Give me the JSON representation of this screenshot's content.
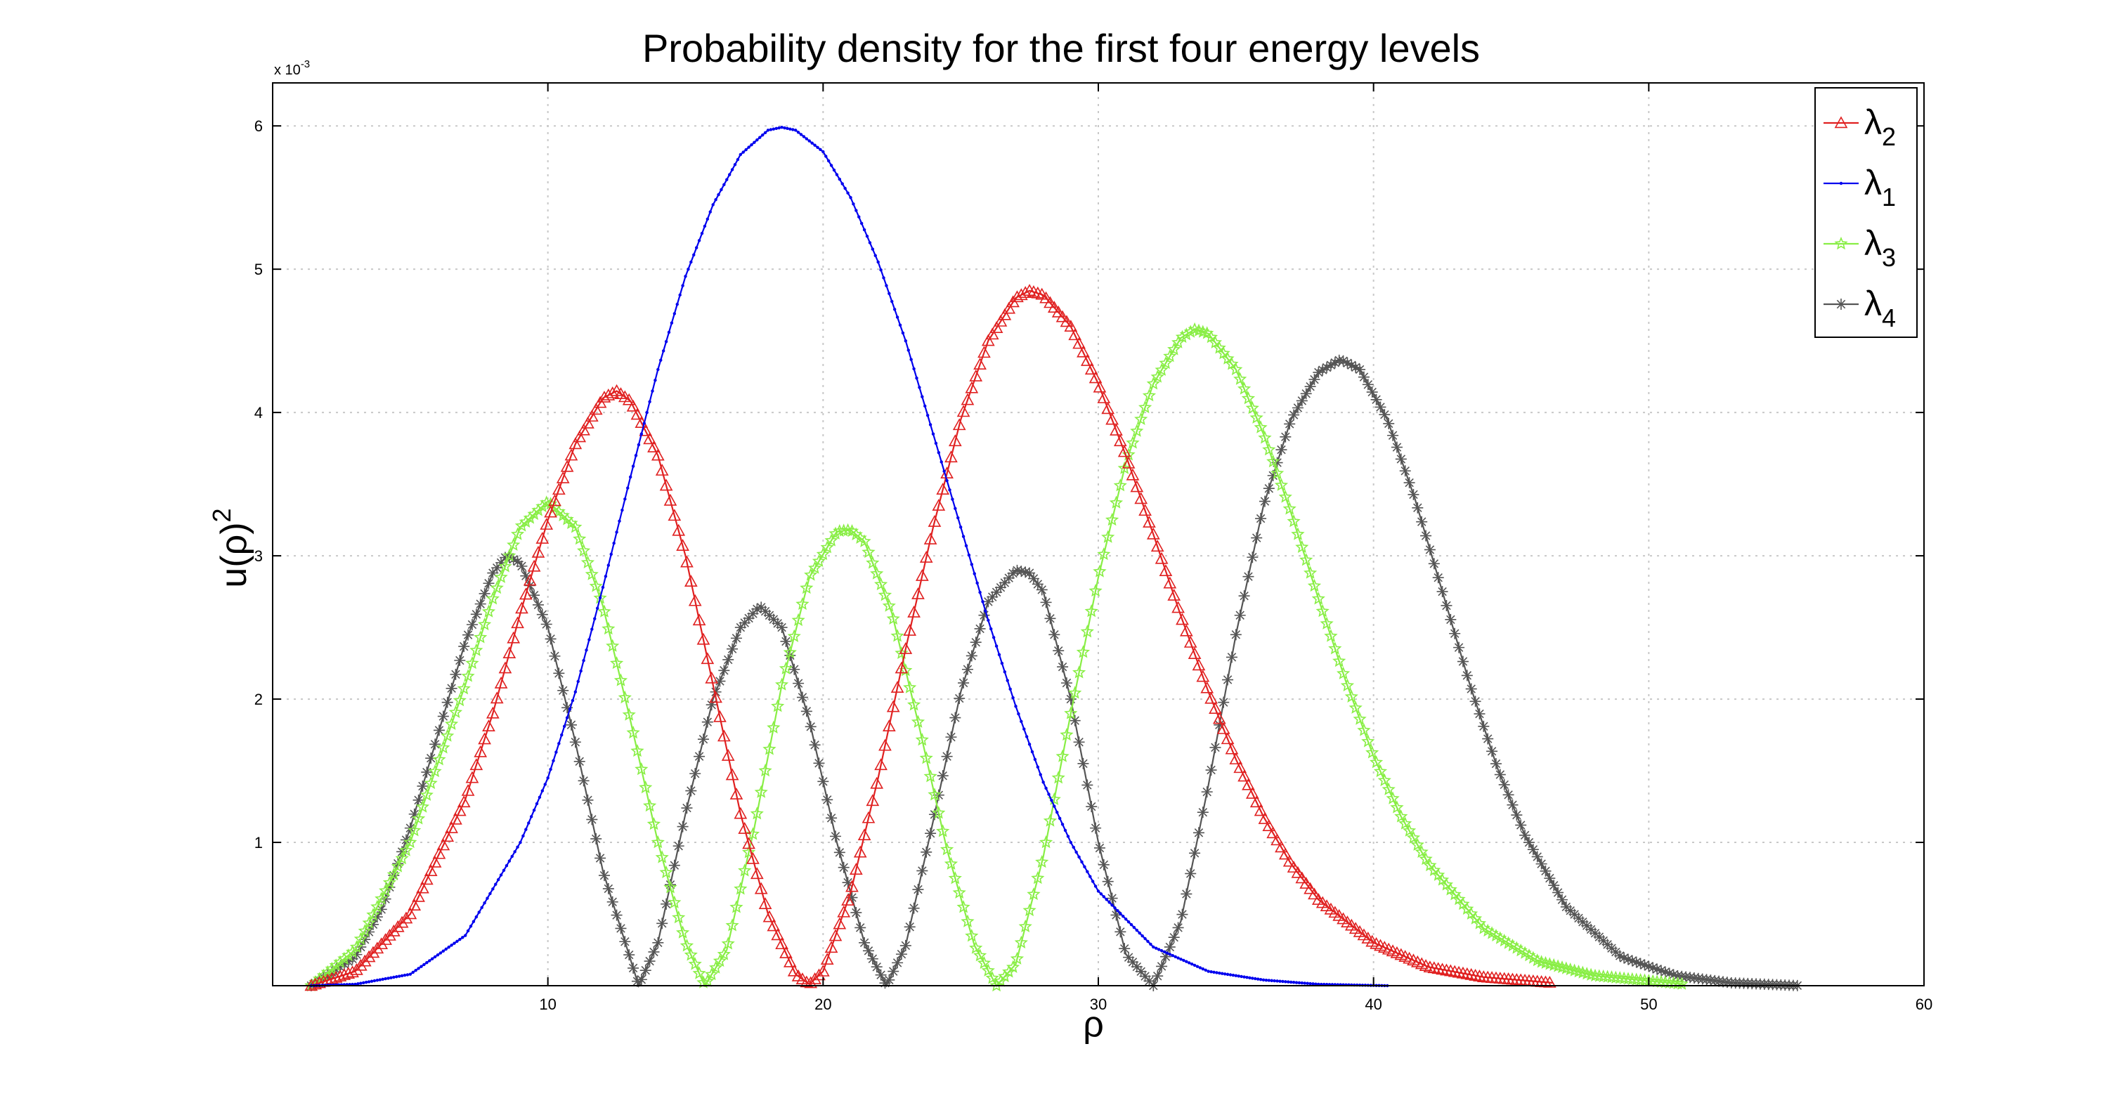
{
  "chart_data": {
    "type": "line",
    "title": "Probability density for the first four energy levels",
    "xlabel": "ρ",
    "ylabel": "u(ρ)",
    "ylabel_superscript": "2",
    "y_multiplier_base": "x 10",
    "y_multiplier_exp": "-3",
    "xlim": [
      0,
      60
    ],
    "ylim": [
      0,
      6.3
    ],
    "x_ticks": [
      10,
      20,
      30,
      40,
      50,
      60
    ],
    "y_ticks": [
      1,
      2,
      3,
      4,
      5,
      6
    ],
    "grid": true,
    "legend_position": "top-right",
    "legend": [
      {
        "symbol": "λ",
        "subscript": "2",
        "color": "#e02020",
        "marker": "triangle"
      },
      {
        "symbol": "λ",
        "subscript": "1",
        "color": "#0000ee",
        "marker": "dot"
      },
      {
        "symbol": "λ",
        "subscript": "3",
        "color": "#88ee44",
        "marker": "star"
      },
      {
        "symbol": "λ",
        "subscript": "4",
        "color": "#555555",
        "marker": "asterisk"
      }
    ],
    "series": [
      {
        "color": "#0000ee",
        "marker": "dot",
        "x": [
          1.4,
          3,
          5,
          7,
          9,
          10,
          11,
          12,
          13,
          14,
          15,
          16,
          17,
          18,
          18.5,
          19,
          20,
          21,
          22,
          23,
          24,
          25,
          26,
          27,
          28,
          29,
          30,
          32,
          34,
          36,
          38,
          40.5
        ],
        "y": [
          0.0,
          0.01,
          0.08,
          0.35,
          1.0,
          1.45,
          2.05,
          2.78,
          3.55,
          4.3,
          4.95,
          5.45,
          5.8,
          5.97,
          5.99,
          5.97,
          5.82,
          5.5,
          5.05,
          4.5,
          3.85,
          3.2,
          2.55,
          1.95,
          1.42,
          1.0,
          0.66,
          0.27,
          0.1,
          0.04,
          0.01,
          0.0
        ]
      },
      {
        "color": "#e02020",
        "marker": "triangle",
        "x": [
          1.4,
          3,
          5,
          7,
          8,
          9,
          10,
          11,
          12,
          12.5,
          13,
          14,
          15,
          16,
          17,
          18,
          19,
          19.5,
          20,
          21,
          22,
          23,
          24,
          25,
          26,
          27,
          27.5,
          28,
          29,
          30,
          31,
          32,
          33,
          34,
          35,
          36,
          37,
          38,
          40,
          42,
          44,
          46.5
        ],
        "y": [
          0.0,
          0.1,
          0.5,
          1.3,
          1.9,
          2.6,
          3.25,
          3.78,
          4.1,
          4.15,
          4.08,
          3.7,
          3.0,
          2.1,
          1.2,
          0.5,
          0.08,
          0.01,
          0.1,
          0.65,
          1.45,
          2.35,
          3.2,
          3.95,
          4.5,
          4.8,
          4.85,
          4.82,
          4.6,
          4.2,
          3.7,
          3.15,
          2.58,
          2.05,
          1.58,
          1.18,
          0.85,
          0.6,
          0.3,
          0.13,
          0.06,
          0.02
        ]
      },
      {
        "color": "#88ee44",
        "marker": "star",
        "x": [
          1.4,
          3,
          5,
          7,
          8,
          9,
          10,
          11,
          12,
          13,
          14,
          15,
          15.7,
          16.5,
          17.5,
          18.5,
          19.5,
          20.5,
          21,
          21.5,
          22.5,
          23.5,
          24.5,
          25.5,
          26.3,
          27,
          28,
          29,
          30,
          31,
          32,
          33,
          33.5,
          34,
          35,
          36,
          37,
          38,
          39,
          40,
          41,
          42,
          44,
          46,
          48,
          51.3
        ],
        "y": [
          0.0,
          0.25,
          1.0,
          2.1,
          2.7,
          3.2,
          3.38,
          3.2,
          2.65,
          1.85,
          1.0,
          0.3,
          0.0,
          0.25,
          1.1,
          2.1,
          2.85,
          3.17,
          3.18,
          3.1,
          2.6,
          1.8,
          0.95,
          0.28,
          0.0,
          0.15,
          0.9,
          1.9,
          2.85,
          3.65,
          4.2,
          4.52,
          4.58,
          4.55,
          4.3,
          3.85,
          3.3,
          2.7,
          2.12,
          1.6,
          1.18,
          0.85,
          0.4,
          0.17,
          0.07,
          0.01
        ]
      },
      {
        "color": "#555555",
        "marker": "asterisk",
        "x": [
          1.4,
          3,
          4,
          5,
          6,
          7,
          8,
          8.5,
          9,
          10,
          11,
          12,
          13.3,
          14,
          15,
          16,
          17,
          17.7,
          18.5,
          19.5,
          20.5,
          21.5,
          22.3,
          23,
          24,
          25,
          26,
          27,
          27.5,
          28,
          29,
          30,
          31,
          32,
          33,
          34,
          35,
          36,
          37,
          38,
          38.8,
          39.5,
          40.5,
          41.5,
          42.5,
          43.5,
          44.5,
          45.5,
          47,
          49,
          51,
          53,
          55.5
        ],
        "y": [
          0.0,
          0.2,
          0.55,
          1.1,
          1.75,
          2.4,
          2.88,
          3.0,
          2.95,
          2.5,
          1.7,
          0.8,
          0.0,
          0.3,
          1.2,
          2.0,
          2.5,
          2.65,
          2.5,
          1.85,
          1.0,
          0.3,
          0.0,
          0.28,
          1.15,
          2.05,
          2.68,
          2.9,
          2.88,
          2.75,
          2.0,
          1.0,
          0.22,
          0.0,
          0.45,
          1.4,
          2.45,
          3.35,
          3.95,
          4.28,
          4.37,
          4.3,
          3.95,
          3.4,
          2.75,
          2.1,
          1.52,
          1.05,
          0.55,
          0.2,
          0.07,
          0.02,
          0.0
        ]
      }
    ]
  }
}
